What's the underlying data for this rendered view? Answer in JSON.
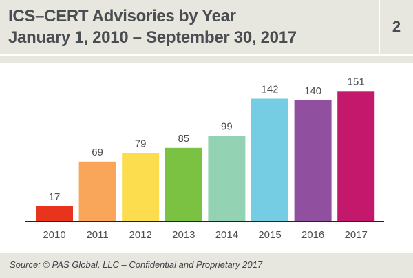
{
  "header": {
    "title_line1": "ICS–CERT Advisories by Year",
    "title_line2": "January 1, 2010  – September 30, 2017",
    "slide_number": "2"
  },
  "footer": {
    "source": "Source: © PAS Global, LLC  – Confidential and Proprietary 2017"
  },
  "colors": {
    "header_bg": "#e7e6df",
    "text": "#4a4e52"
  },
  "chart_data": {
    "type": "bar",
    "categories": [
      "2010",
      "2011",
      "2012",
      "2013",
      "2014",
      "2015",
      "2016",
      "2017"
    ],
    "values": [
      17,
      69,
      79,
      85,
      99,
      142,
      140,
      151
    ],
    "bar_colors": [
      "#e8341c",
      "#f9a65a",
      "#fbdd4e",
      "#7cc242",
      "#93d3b4",
      "#74cde2",
      "#91509f",
      "#c3186b"
    ],
    "data_labels": [
      "17",
      "69",
      "79",
      "85",
      "99",
      "142",
      "140",
      "151"
    ],
    "ylim": [
      0,
      160
    ],
    "grid": false,
    "legend": "none"
  }
}
